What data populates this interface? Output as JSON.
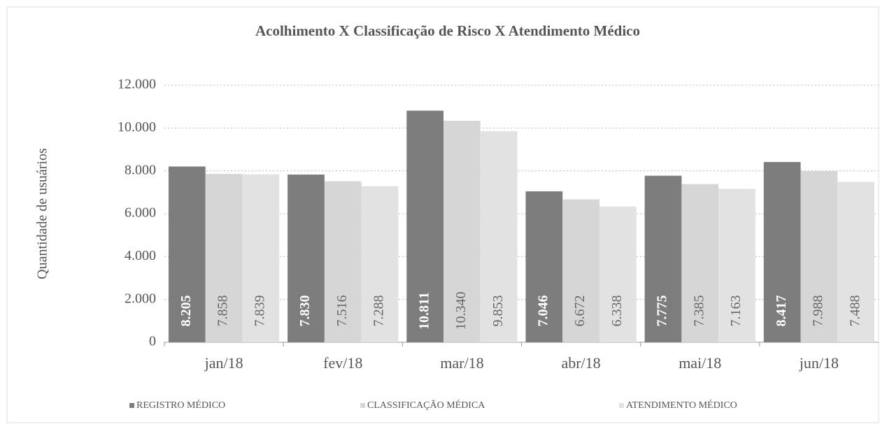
{
  "chart_data": {
    "type": "bar",
    "title": "Acolhimento X Classificação de Risco X Atendimento Médico",
    "y_label": "Quantidade de usuários",
    "categories": [
      "jan/18",
      "fev/18",
      "mar/18",
      "abr/18",
      "mai/18",
      "jun/18"
    ],
    "series": [
      {
        "name": "REGISTRO MÉDICO",
        "color": "#7d7d7d",
        "values": [
          8205,
          7830,
          10811,
          7046,
          7775,
          8417
        ],
        "value_labels": [
          "8.205",
          "7.830",
          "10.811",
          "7.046",
          "7.775",
          "8.417"
        ]
      },
      {
        "name": "CLASSIFICAÇÃO MÉDICA",
        "color": "#d6d6d6",
        "values": [
          7858,
          7516,
          10340,
          6672,
          7385,
          7988
        ],
        "value_labels": [
          "7.858",
          "7.516",
          "10.340",
          "6.672",
          "7.385",
          "7.988"
        ]
      },
      {
        "name": "ATENDIMENTO MÉDICO",
        "color": "#e2e2e2",
        "values": [
          7839,
          7288,
          9853,
          6338,
          7163,
          7488
        ],
        "value_labels": [
          "7.839",
          "7.288",
          "9.853",
          "6.338",
          "7.163",
          "7.488"
        ]
      }
    ],
    "ylim": [
      0,
      12000
    ],
    "yticks": [
      0,
      {
        "value": 2000,
        "label": "2.000"
      },
      {
        "value": 4000,
        "label": "4.000"
      },
      {
        "value": 6000,
        "label": "6.000"
      },
      {
        "value": 8000,
        "label": "8.000"
      },
      {
        "value": 10000,
        "label": "10.000"
      },
      {
        "value": 12000,
        "label": "12.000"
      }
    ],
    "grid": true,
    "legend": "bottom"
  }
}
